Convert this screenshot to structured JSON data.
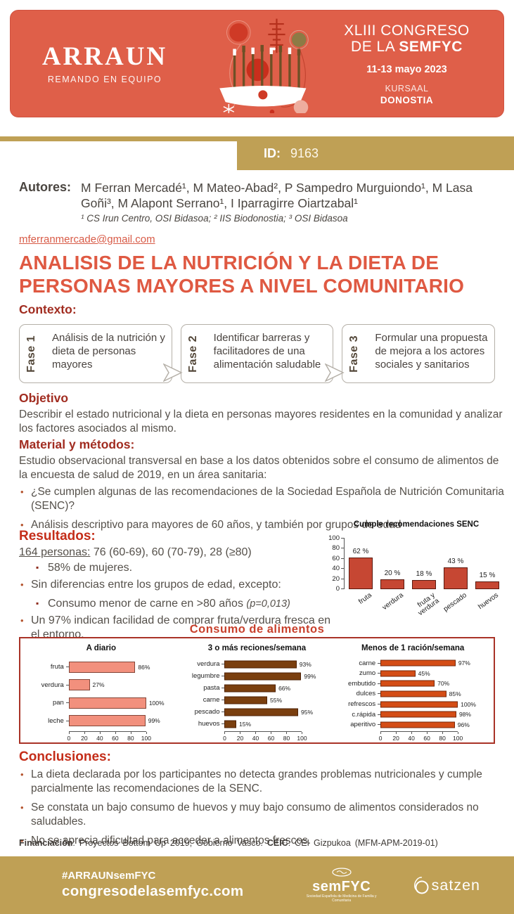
{
  "colors": {
    "header_red": "#df5f49",
    "gold": "#bfa055",
    "title_red": "#df5942",
    "heading_red": "#a12c20",
    "resultados_red": "#c42d19",
    "body_text": "#55504a",
    "email_red": "#d85b47",
    "consumo_border": "#a93327",
    "consumo_title": "#c8402c"
  },
  "header": {
    "brand": "ARRAUN",
    "tagline": "REMANDO EN EQUIPO",
    "congress_line1": "XLIII CONGRESO",
    "congress_line2_prefix": "DE LA ",
    "congress_line2_bold": "SEMFYC",
    "dates": "11-13 mayo 2023",
    "venue": "KURSAAL",
    "city": "DONOSTIA",
    "boat_icon": "rowing-boat-illustration"
  },
  "id_badge": {
    "label": "ID:",
    "value": "9163"
  },
  "authors": {
    "label": "Autores:",
    "names": "M Ferran Mercadé¹, M Mateo-Abad², P Sampedro Murguiondo¹, M Lasa Goñi³, M Alapont Serrano¹, I Iparragirre Oiartzabal¹",
    "affiliations": "¹ CS Irun Centro, OSI Bidasoa; ² IIS Biodonostia; ³ OSI Bidasoa",
    "email": "mferranmercade@gmail.com"
  },
  "title": "ANALISIS DE LA NUTRICIÓN Y LA DIETA DE PERSONAS MAYORES A NIVEL COMUNITARIO",
  "contexto": {
    "heading": "Contexto:",
    "fases": [
      {
        "label": "Fase 1",
        "text": "Análisis de la nutrición y dieta de personas mayores"
      },
      {
        "label": "Fase 2",
        "text": "Identificar barreras y facilitadores de una alimentación saludable"
      },
      {
        "label": "Fase 3",
        "text": "Formular una propuesta de mejora a los actores sociales y sanitarios"
      }
    ]
  },
  "objetivo": {
    "heading": "Objetivo",
    "text": "Describir el estado nutricional y la dieta en personas mayores residentes en la comunidad y analizar los factores asociados al mismo."
  },
  "metodos": {
    "heading": "Material y métodos:",
    "intro": "Estudio observacional transversal en base a los datos obtenidos sobre el consumo de alimentos de la encuesta de salud de 2019, en un área sanitaria:",
    "bullets": [
      "¿Se cumplen algunas de las recomendaciones de la Sociedad Española de Nutrición Comunitaria (SENC)?",
      "Análisis descriptivo para mayores de 60 años, y también por grupos de edad"
    ]
  },
  "resultados": {
    "heading": "Resultados:",
    "personas_underlined": "164 personas:",
    "personas_rest": " 76 (60-69), 60 (70-79), 28 (≥80)",
    "sub1": "58% de mujeres.",
    "bullet2": "Sin diferencias entre los grupos de edad, excepto:",
    "sub2_main": "Consumo menor de carne en >80 años ",
    "sub2_pvalue": "(p=0,013)",
    "bullet3": "Un 97% indican facilidad de comprar fruta/verdura fresca en el entorno."
  },
  "consumo_heading": "Consumo de alimentos",
  "chart_data": [
    {
      "id": "cumple-senc",
      "type": "bar",
      "orientation": "vertical",
      "title": "Cumple recomendaciones SENC",
      "categories": [
        "fruta",
        "verdura",
        "fruta y\nverdura",
        "pescado",
        "huevos"
      ],
      "values": [
        62,
        20,
        18,
        43,
        15
      ],
      "value_labels": [
        "62 %",
        "20 %",
        "18 %",
        "43 %",
        "15 %"
      ],
      "ylim": [
        0,
        100
      ],
      "yticks": [
        0,
        20,
        40,
        60,
        80,
        100
      ],
      "bar_color": "#c64733",
      "grid": false,
      "legend": false
    },
    {
      "id": "a-diario",
      "type": "bar",
      "orientation": "horizontal",
      "title": "A diario",
      "categories": [
        "fruta",
        "verdura",
        "pan",
        "leche"
      ],
      "values": [
        86,
        27,
        100,
        99
      ],
      "value_labels": [
        "86%",
        "27%",
        "100%",
        "99%"
      ],
      "xlim": [
        0,
        100
      ],
      "xticks": [
        0,
        20,
        40,
        60,
        80,
        100
      ],
      "bar_color": "#f2907d",
      "grid": false,
      "legend": false
    },
    {
      "id": "tres-o-mas-semana",
      "type": "bar",
      "orientation": "horizontal",
      "title": "3 o más reciones/semana",
      "categories": [
        "verdura",
        "legumbre",
        "pasta",
        "carne",
        "pescado",
        "huevos"
      ],
      "values": [
        93,
        99,
        66,
        55,
        95,
        15
      ],
      "value_labels": [
        "93%",
        "99%",
        "66%",
        "55%",
        "95%",
        "15%"
      ],
      "xlim": [
        0,
        100
      ],
      "xticks": [
        0,
        20,
        40,
        60,
        80,
        100
      ],
      "bar_color": "#7a3f0f",
      "grid": false,
      "legend": false
    },
    {
      "id": "menos-de-1-semana",
      "type": "bar",
      "orientation": "horizontal",
      "title": "Menos de 1 ración/semana",
      "categories": [
        "carne",
        "zumo",
        "embutido",
        "dulces",
        "refrescos",
        "c.rápida",
        "aperitivo"
      ],
      "values": [
        97,
        45,
        70,
        85,
        100,
        98,
        96
      ],
      "value_labels": [
        "97%",
        "45%",
        "70%",
        "85%",
        "100%",
        "98%",
        "96%"
      ],
      "xlim": [
        0,
        100
      ],
      "xticks": [
        0,
        20,
        40,
        60,
        80,
        100
      ],
      "bar_color": "#d44d16",
      "grid": false,
      "legend": false
    }
  ],
  "conclusiones": {
    "heading": "Conclusiones:",
    "bullets": [
      "La dieta declarada por los participantes no detecta grandes problemas nutricionales y cumple parcialmente las recomendaciones de la SENC.",
      "Se constata un bajo consumo de huevos y muy bajo consumo de alimentos considerados no saludables.",
      "No se aprecia dificultad para acceder a alimentos frescos."
    ]
  },
  "financiacion": {
    "label": "Financiación",
    "text1": ": Proyectos Bottom Up 2019, Gobierno Vasco. ",
    "ceic_label": "CEIC",
    "text2": ": CEI Gizpukoa (MFM-APM-2019-01)"
  },
  "footer": {
    "hashtag": "#ARRAUNsemFYC",
    "website": "congresodelasemfyc.com",
    "semfyc_logo": "semFYC",
    "semfyc_sub": "Sociedad Española de Medicina de Familia y Comunitaria",
    "osatzen_icon": "o-circle-icon",
    "osatzen_text": "satzen"
  }
}
